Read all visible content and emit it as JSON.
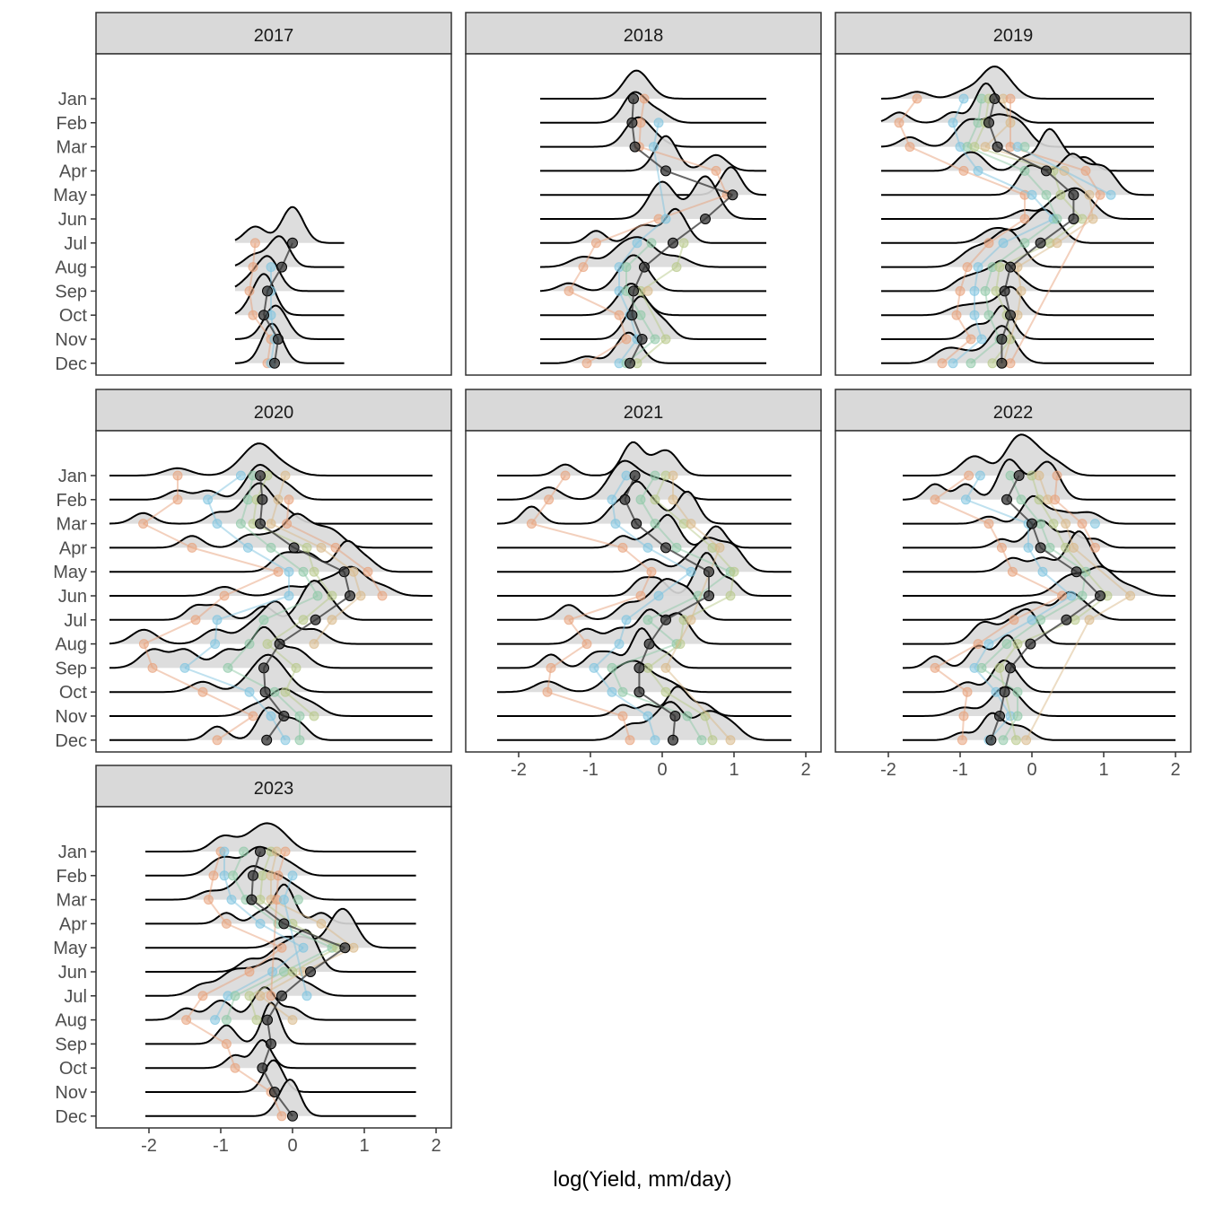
{
  "chart_data": {
    "type": "ridgeline",
    "xlabel": "log(Yield, mm/day)",
    "ylabel": "",
    "xlim": [
      -2.55,
      2.2
    ],
    "x_ticks": [
      -2,
      -1,
      0,
      1,
      2
    ],
    "x_tick_labels": [
      "-2",
      "-1",
      "0",
      "1",
      "2"
    ],
    "y_categories": [
      "Jan",
      "Feb",
      "Mar",
      "Apr",
      "May",
      "Jun",
      "Jul",
      "Aug",
      "Sep",
      "Oct",
      "Nov",
      "Dec"
    ],
    "colors": {
      "strip_fill": "#d9d9d9",
      "density_fill": "#d9d9d9",
      "density_line": "#000000",
      "median_point": "#333333",
      "site_palette": [
        "#e8a27c",
        "#7fc4e0",
        "#8fc9a8",
        "#b8c98a",
        "#d9b98a"
      ]
    },
    "facets": [
      {
        "year": "2017",
        "density_range": [
          -0.8,
          0.72
        ],
        "months_present": [
          "Jul",
          "Aug",
          "Sep",
          "Oct",
          "Nov",
          "Dec"
        ],
        "median": [
          null,
          null,
          null,
          null,
          null,
          null,
          0.0,
          -0.15,
          -0.35,
          -0.4,
          -0.2,
          -0.25
        ],
        "site_points": [
          [],
          [],
          [],
          [],
          [],
          [],
          [
            -0.52
          ],
          [
            -0.55,
            -0.3
          ],
          [
            -0.6,
            -0.3
          ],
          [
            -0.55,
            -0.3
          ],
          [
            -0.3,
            -0.25
          ],
          [
            -0.35,
            -0.3
          ]
        ]
      },
      {
        "year": "2018",
        "density_range": [
          -1.7,
          1.45
        ],
        "months_present": [
          "Jan",
          "Feb",
          "Mar",
          "Apr",
          "May",
          "Jun",
          "Jul",
          "Aug",
          "Sep",
          "Oct",
          "Nov",
          "Dec"
        ],
        "median": [
          -0.4,
          -0.42,
          -0.38,
          0.05,
          0.98,
          0.6,
          0.15,
          -0.25,
          -0.4,
          -0.42,
          -0.28,
          -0.45
        ],
        "site_points": [
          [
            -0.25
          ],
          [
            -0.3,
            -0.05
          ],
          [
            -0.32,
            -0.12
          ],
          [
            0.75
          ],
          [
            0.9
          ],
          [
            -0.05,
            0.05
          ],
          [
            -0.92,
            -0.35,
            -0.15,
            0.3
          ],
          [
            -1.1,
            -0.6,
            -0.5,
            0.2
          ],
          [
            -1.3,
            -0.6,
            -0.5,
            -0.3,
            -0.2
          ],
          [
            -0.6,
            -0.45,
            -0.3
          ],
          [
            -0.5,
            -0.35,
            -0.1,
            0.05
          ],
          [
            -1.05,
            -0.6,
            -0.5,
            -0.35
          ]
        ]
      },
      {
        "year": "2019",
        "density_range": [
          -2.1,
          1.7
        ],
        "months_present": [
          "Jan",
          "Feb",
          "Mar",
          "Apr",
          "May",
          "Jun",
          "Jul",
          "Aug",
          "Sep",
          "Oct",
          "Nov",
          "Dec"
        ],
        "median": [
          -0.52,
          -0.6,
          -0.48,
          0.2,
          0.58,
          0.58,
          0.12,
          -0.3,
          -0.38,
          -0.3,
          -0.42,
          -0.42
        ],
        "site_points": [
          [
            -1.6,
            -0.95,
            -0.7,
            -0.6,
            -0.4,
            -0.3
          ],
          [
            -1.85,
            -1.1,
            -0.75,
            -0.65,
            -0.3
          ],
          [
            -1.7,
            -1.0,
            -0.9,
            -0.8,
            -0.65,
            -0.3,
            -0.2,
            -0.1
          ],
          [
            -0.95,
            -0.75,
            -0.1,
            0.3,
            0.45,
            0.75
          ],
          [
            -0.1,
            0.0,
            0.2,
            0.4,
            0.8,
            0.95,
            1.1
          ],
          [
            -0.1,
            0.3,
            0.35,
            0.7,
            0.85
          ],
          [
            -0.6,
            -0.4,
            -0.1,
            0.25,
            0.35
          ],
          [
            -0.9,
            -0.75,
            -0.55,
            -0.45,
            -0.2
          ],
          [
            -1.0,
            -0.8,
            -0.65,
            -0.5,
            -0.15
          ],
          [
            -1.05,
            -0.8,
            -0.6,
            -0.35,
            -0.2
          ],
          [
            -0.85,
            -0.7,
            -0.45,
            -0.3
          ],
          [
            -1.25,
            -1.1,
            -0.85,
            -0.55,
            -0.4,
            -0.3
          ]
        ]
      },
      {
        "year": "2020",
        "density_range": [
          -2.55,
          1.95
        ],
        "months_present": [
          "Jan",
          "Feb",
          "Mar",
          "Apr",
          "May",
          "Jun",
          "Jul",
          "Aug",
          "Sep",
          "Oct",
          "Nov",
          "Dec"
        ],
        "median": [
          -0.45,
          -0.42,
          -0.45,
          0.02,
          0.72,
          0.8,
          0.32,
          -0.18,
          -0.4,
          -0.38,
          -0.12,
          -0.36
        ],
        "site_points": [
          [
            -1.6,
            -0.72,
            -0.55,
            -0.35,
            -0.1
          ],
          [
            -1.6,
            -1.18,
            -0.62,
            -0.5,
            -0.2,
            -0.05
          ],
          [
            -2.08,
            -1.05,
            -0.72,
            -0.55,
            -0.3,
            -0.08
          ],
          [
            -1.4,
            -0.62,
            -0.3,
            0.2,
            0.4,
            0.6
          ],
          [
            -0.2,
            -0.05,
            0.15,
            0.3,
            0.85,
            1.05
          ],
          [
            -0.95,
            -0.05,
            0.35,
            0.55,
            0.95,
            1.25
          ],
          [
            -1.35,
            -1.05,
            -0.4,
            0.15,
            0.55
          ],
          [
            -2.07,
            -1.08,
            -0.6,
            -0.35,
            0.3
          ],
          [
            -1.95,
            -1.5,
            -0.9,
            0.05
          ],
          [
            -1.25,
            -0.6,
            -0.25,
            -0.1
          ],
          [
            -0.55,
            -0.3,
            0.1,
            0.3
          ],
          [
            -1.05,
            -0.1,
            0.1
          ]
        ]
      },
      {
        "year": "2021",
        "density_range": [
          -2.3,
          1.8
        ],
        "months_present": [
          "Jan",
          "Feb",
          "Mar",
          "Apr",
          "May",
          "Jun",
          "Jul",
          "Aug",
          "Sep",
          "Oct",
          "Nov",
          "Dec"
        ],
        "median": [
          -0.38,
          -0.52,
          -0.36,
          0.05,
          0.65,
          0.65,
          0.05,
          -0.18,
          -0.32,
          -0.32,
          0.18,
          0.15
        ],
        "site_points": [
          [
            -1.35,
            -0.5,
            -0.1,
            0.05,
            0.15
          ],
          [
            -1.58,
            -0.7,
            -0.3,
            -0.1,
            0.15
          ],
          [
            -1.82,
            -0.65,
            -0.1,
            0.3,
            0.4
          ],
          [
            -0.55,
            -0.2,
            0.2,
            0.7,
            0.8
          ],
          [
            -0.15,
            0.4,
            0.95,
            1.0
          ],
          [
            -0.3,
            -0.05,
            0.5,
            0.95
          ],
          [
            -1.3,
            -0.5,
            -0.2,
            0.3,
            0.4
          ],
          [
            -1.05,
            -0.6,
            0.2,
            0.25
          ],
          [
            -1.55,
            -0.95,
            -0.7,
            -0.2,
            0.05
          ],
          [
            -1.6,
            -0.7,
            -0.55,
            0.05
          ],
          [
            -0.55,
            -0.2,
            0.35,
            0.6
          ],
          [
            -0.45,
            -0.1,
            0.55,
            0.7,
            0.95
          ]
        ]
      },
      {
        "year": "2022",
        "density_range": [
          -1.8,
          2.0
        ],
        "months_present": [
          "Jan",
          "Feb",
          "Mar",
          "Apr",
          "May",
          "Jun",
          "Jul",
          "Aug",
          "Sep",
          "Oct",
          "Nov",
          "Dec"
        ],
        "median": [
          -0.18,
          -0.35,
          0.0,
          0.12,
          0.62,
          0.95,
          0.48,
          -0.02,
          -0.3,
          -0.38,
          -0.45,
          -0.57
        ],
        "site_points": [
          [
            -0.88,
            -0.72,
            -0.3,
            0.0,
            0.1,
            0.35
          ],
          [
            -1.35,
            -0.92,
            -0.15,
            0.1,
            0.22,
            0.32
          ],
          [
            -0.6,
            -0.05,
            0.12,
            0.3,
            0.47,
            0.7,
            0.88
          ],
          [
            -0.42,
            -0.05,
            0.25,
            0.47,
            0.58,
            0.88
          ],
          [
            -0.27,
            0.15,
            0.75
          ],
          [
            0.42,
            0.55,
            0.7,
            1.05,
            1.37
          ],
          [
            -0.25,
            0.0,
            0.12,
            0.6,
            0.8
          ],
          [
            -0.75,
            -0.6,
            -0.35,
            -0.2
          ],
          [
            -1.35,
            -0.8,
            -0.7,
            -0.45
          ],
          [
            -0.9,
            -0.5,
            -0.2
          ],
          [
            -0.95,
            -0.3,
            -0.2
          ],
          [
            -0.97,
            -0.6,
            -0.4,
            -0.22,
            -0.08
          ]
        ]
      },
      {
        "year": "2023",
        "density_range": [
          -2.05,
          1.72
        ],
        "months_present": [
          "Jan",
          "Feb",
          "Mar",
          "Apr",
          "May",
          "Jun",
          "Jul",
          "Aug",
          "Sep",
          "Oct",
          "Nov",
          "Dec"
        ],
        "median": [
          -0.45,
          -0.55,
          -0.57,
          -0.12,
          0.73,
          0.25,
          -0.15,
          -0.35,
          -0.3,
          -0.42,
          -0.25,
          0.0
        ],
        "site_points": [
          [
            -1.0,
            -0.95,
            -0.68,
            -0.3,
            -0.22,
            -0.1
          ],
          [
            -1.1,
            -0.95,
            -0.83,
            -0.42,
            -0.3,
            -0.2,
            0.0
          ],
          [
            -1.17,
            -0.85,
            -0.65,
            -0.45,
            -0.3,
            -0.22,
            -0.12,
            0.08
          ],
          [
            -0.92,
            -0.45,
            -0.2,
            0.0,
            0.4
          ],
          [
            -0.15,
            0.15,
            0.55,
            0.62,
            0.85
          ],
          [
            -0.6,
            -0.28,
            -0.12,
            0.0,
            0.15
          ],
          [
            -1.25,
            -0.9,
            -0.8,
            -0.6,
            -0.45,
            -0.3,
            0.2
          ],
          [
            -1.48,
            -1.08,
            -0.92,
            -0.5,
            0.0
          ],
          [
            -0.92
          ],
          [
            -0.8
          ],
          [
            -0.3
          ],
          [
            -0.15
          ]
        ]
      }
    ]
  }
}
